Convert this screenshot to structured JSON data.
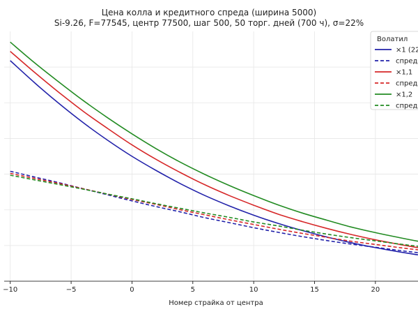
{
  "chart_data": {
    "type": "line",
    "title_line1": "Цена колла и кредитного спреда (ширина 5000)",
    "title_line2": "Si-9.26, F=77545, центр 77500, шаг 500, 50 торг. дней (700 ч), σ=22%",
    "xlabel": "Номер страйка от центра",
    "ylabel": "",
    "xlim": [
      -10.5,
      23.5
    ],
    "ylim": [
      0,
      7000
    ],
    "x_ticks": [
      -10,
      -5,
      0,
      5,
      10,
      15,
      20
    ],
    "x_tick_labels": [
      "−10",
      "−5",
      "0",
      "5",
      "10",
      "15",
      "20"
    ],
    "grid": true,
    "legend": {
      "title": "Волатил",
      "placement": "top-right",
      "entries": [
        "×1 (22",
        "спред",
        "×1,1",
        "спред",
        "×1,2",
        "спред"
      ]
    },
    "x": [
      -10,
      -8,
      -6,
      -4,
      -2,
      0,
      2,
      4,
      6,
      8,
      10,
      12,
      14,
      16,
      18,
      20,
      22,
      23.5
    ],
    "series": [
      {
        "name": "×1 (22",
        "style": "solid",
        "color": "#2222aa",
        "values": [
          6180,
          5560,
          4980,
          4440,
          3950,
          3500,
          3100,
          2730,
          2400,
          2110,
          1850,
          1620,
          1420,
          1240,
          1080,
          940,
          820,
          740
        ]
      },
      {
        "name": "спред",
        "style": "dashed",
        "color": "#2222aa",
        "values": [
          3080,
          2920,
          2760,
          2590,
          2420,
          2250,
          2090,
          1940,
          1780,
          1640,
          1500,
          1370,
          1250,
          1140,
          1040,
          950,
          860,
          800
        ]
      },
      {
        "name": "×1,1",
        "style": "solid",
        "color": "#d62728",
        "values": [
          6440,
          5850,
          5290,
          4760,
          4280,
          3820,
          3410,
          3040,
          2700,
          2400,
          2130,
          1880,
          1670,
          1480,
          1310,
          1160,
          1030,
          940
        ]
      },
      {
        "name": "спред",
        "style": "dashed",
        "color": "#d62728",
        "values": [
          3020,
          2880,
          2740,
          2590,
          2440,
          2290,
          2150,
          2000,
          1860,
          1720,
          1590,
          1460,
          1340,
          1230,
          1120,
          1030,
          940,
          880
        ]
      },
      {
        "name": "×1,2",
        "style": "solid",
        "color": "#228b22",
        "values": [
          6700,
          6120,
          5580,
          5060,
          4580,
          4130,
          3710,
          3330,
          2990,
          2680,
          2400,
          2140,
          1910,
          1710,
          1520,
          1360,
          1220,
          1120
        ]
      },
      {
        "name": "спред",
        "style": "dashed",
        "color": "#228b22",
        "values": [
          2970,
          2840,
          2710,
          2580,
          2440,
          2310,
          2170,
          2040,
          1910,
          1790,
          1660,
          1550,
          1430,
          1320,
          1220,
          1130,
          1040,
          980
        ]
      }
    ]
  }
}
